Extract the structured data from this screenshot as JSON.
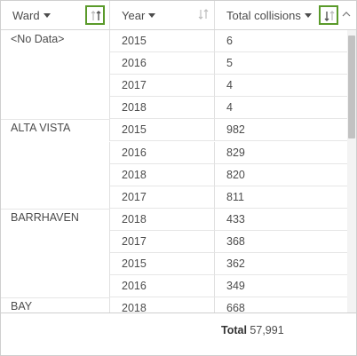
{
  "columns": [
    {
      "label": "Ward"
    },
    {
      "label": "Year"
    },
    {
      "label": "Total collisions"
    }
  ],
  "rows": [
    {
      "ward": "<No Data>",
      "year": "2015",
      "total": "6"
    },
    {
      "ward": "",
      "year": "2016",
      "total": "5"
    },
    {
      "ward": "",
      "year": "2017",
      "total": "4"
    },
    {
      "ward": "",
      "year": "2018",
      "total": "4"
    },
    {
      "ward": "ALTA VISTA",
      "year": "2015",
      "total": "982"
    },
    {
      "ward": "",
      "year": "2016",
      "total": "829"
    },
    {
      "ward": "",
      "year": "2018",
      "total": "820"
    },
    {
      "ward": "",
      "year": "2017",
      "total": "811"
    },
    {
      "ward": "BARRHAVEN",
      "year": "2018",
      "total": "433"
    },
    {
      "ward": "",
      "year": "2017",
      "total": "368"
    },
    {
      "ward": "",
      "year": "2015",
      "total": "362"
    },
    {
      "ward": "",
      "year": "2016",
      "total": "349"
    },
    {
      "ward": "BAY",
      "year": "2018",
      "total": "668"
    }
  ],
  "footer": {
    "total_label": "Total",
    "total_value": "57,991"
  },
  "colors": {
    "highlight": "#5a9a2a",
    "text": "#4c4c4c"
  }
}
